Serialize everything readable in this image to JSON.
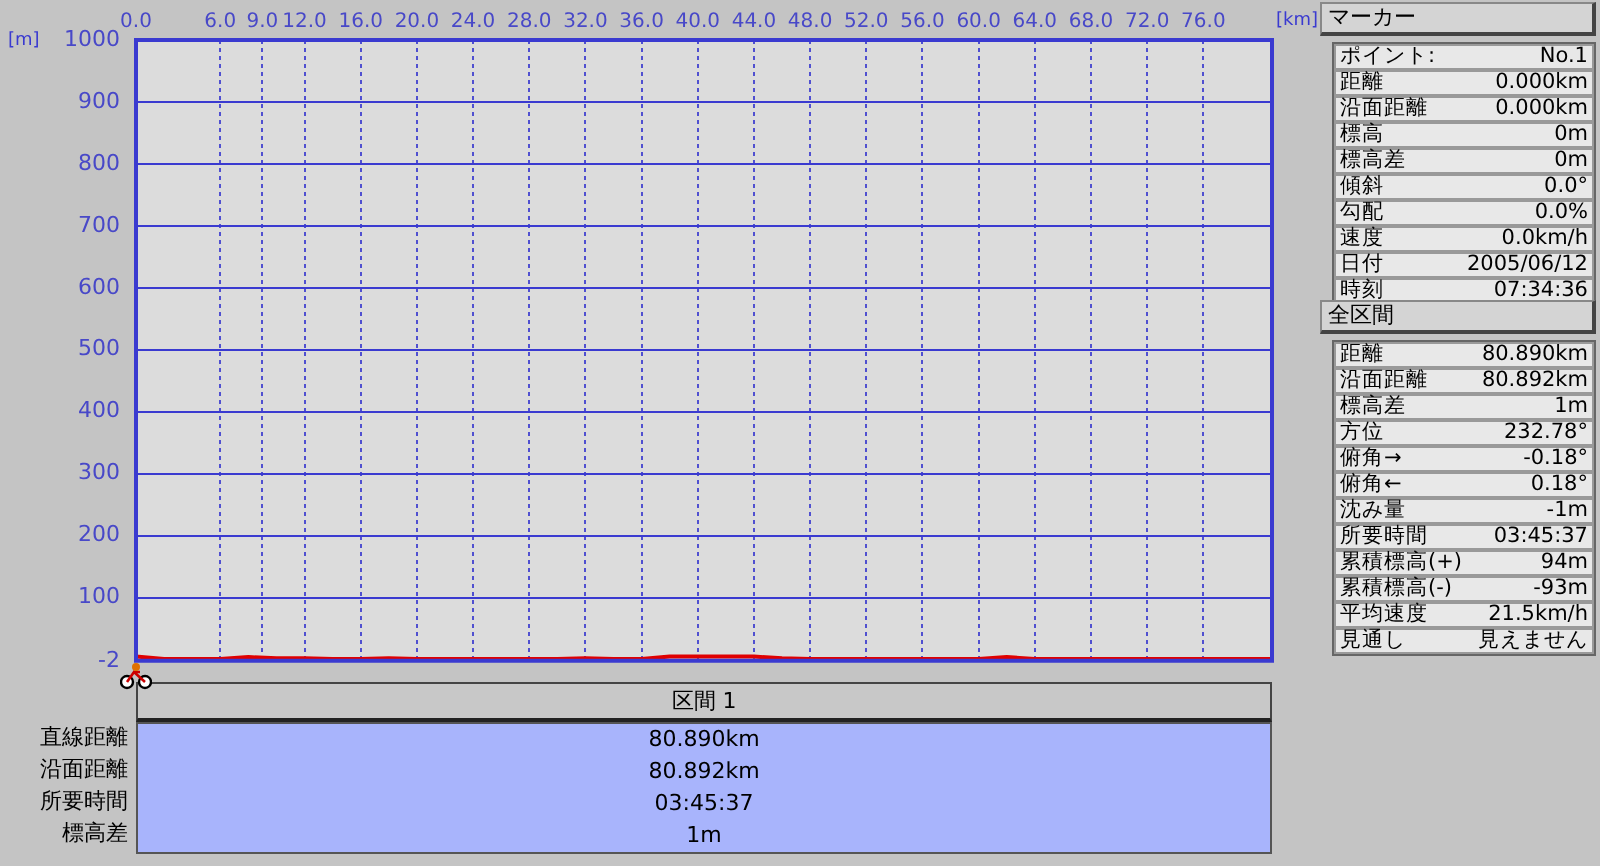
{
  "chart_data": {
    "type": "line",
    "xlabel": "[km]",
    "ylabel": "[m]",
    "x": [
      0,
      2,
      4,
      6,
      8,
      10,
      12,
      14,
      16,
      18,
      20,
      22,
      24,
      26,
      28,
      30,
      32,
      34,
      36,
      38,
      40,
      42,
      44,
      46,
      48,
      50,
      52,
      54,
      56,
      58,
      60,
      62,
      64,
      66,
      68,
      70,
      72,
      74,
      76,
      78,
      80,
      80.89
    ],
    "series": [
      {
        "color": "#e00000",
        "values": [
          5,
          1,
          1,
          1,
          4,
          2,
          2,
          1,
          1,
          2,
          1,
          1,
          1,
          1,
          1,
          1,
          2,
          1,
          1,
          5,
          5,
          5,
          5,
          2,
          1,
          1,
          1,
          1,
          1,
          1,
          1,
          4,
          1,
          1,
          1,
          1,
          1,
          1,
          1,
          1,
          1,
          1
        ]
      }
    ],
    "xlim": [
      0,
      80.89
    ],
    "xticks": [
      {
        "value": 0,
        "label": "0.0"
      },
      {
        "value": 6,
        "label": "6.0"
      },
      {
        "value": 9,
        "label": "9.0"
      },
      {
        "value": 12,
        "label": "12.0"
      },
      {
        "value": 16,
        "label": "16.0"
      },
      {
        "value": 20,
        "label": "20.0"
      },
      {
        "value": 24,
        "label": "24.0"
      },
      {
        "value": 28,
        "label": "28.0"
      },
      {
        "value": 32,
        "label": "32.0"
      },
      {
        "value": 36,
        "label": "36.0"
      },
      {
        "value": 40,
        "label": "40.0"
      },
      {
        "value": 44,
        "label": "44.0"
      },
      {
        "value": 48,
        "label": "48.0"
      },
      {
        "value": 52,
        "label": "52.0"
      },
      {
        "value": 56,
        "label": "56.0"
      },
      {
        "value": 60,
        "label": "60.0"
      },
      {
        "value": 64,
        "label": "64.0"
      },
      {
        "value": 68,
        "label": "68.0"
      },
      {
        "value": 72,
        "label": "72.0"
      },
      {
        "value": 76,
        "label": "76.0"
      }
    ],
    "ylim": [
      -2,
      1000
    ],
    "yticks": [
      -2,
      100,
      200,
      300,
      400,
      500,
      600,
      700,
      800,
      900,
      1000
    ],
    "grid": true,
    "legend": false,
    "marker": "none",
    "line_style": "solid",
    "annotations": [
      "マーカー",
      "ポイント:",
      "No.1",
      "距離",
      "0.000km",
      "沿面距離",
      "0.000km",
      "標高",
      "0m",
      "標高差",
      "0m",
      "傾斜",
      "0.0°",
      "勾配",
      "0.0%",
      "速度",
      "0.0km/h",
      "日付",
      "2005/06/12",
      "時刻",
      "07:34:36",
      "全区間",
      "距離",
      "80.890km",
      "沿面距離",
      "80.892km",
      "標高差",
      "1m",
      "方位",
      "232.78°",
      "俯角→",
      "-0.18°",
      "俯角←",
      "0.18°",
      "沈み量",
      "-1m",
      "所要時間",
      "03:45:37",
      "累積標高(+)",
      "94m",
      "累積標高(-)",
      "-93m",
      "平均速度",
      "21.5km/h",
      "見通し",
      "見えません",
      "区間 1",
      "直線距離",
      "80.890km",
      "沿面距離",
      "80.892km",
      "所要時間",
      "03:45:37",
      "標高差",
      "1m"
    ]
  }
}
